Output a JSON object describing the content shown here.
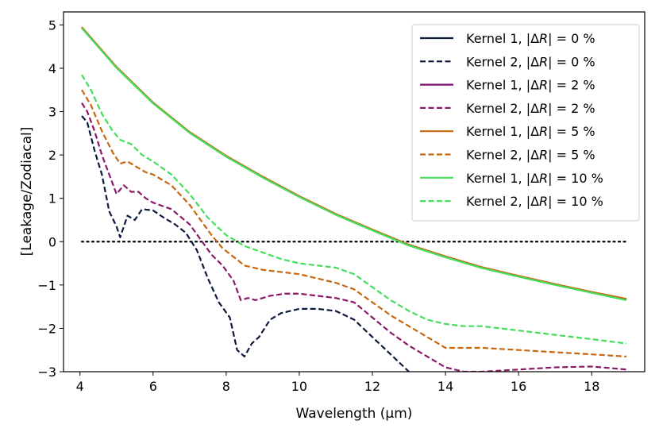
{
  "chart_data": {
    "type": "line",
    "title": "",
    "xlabel": "Wavelength (μm)",
    "ylabel": "[Leakage/Zodiacal]",
    "xlim": [
      3.55,
      19.45
    ],
    "ylim": [
      -3,
      5.3
    ],
    "xticks": [
      4,
      6,
      8,
      10,
      12,
      14,
      16,
      18
    ],
    "yticks": [
      -3,
      -2,
      -1,
      0,
      1,
      2,
      3,
      4,
      5
    ],
    "grid": false,
    "legend_position": "top-right",
    "reference_line": {
      "y": 0,
      "x_range": [
        4.05,
        18.95
      ],
      "style": "dotted",
      "color": "#000000"
    },
    "series": [
      {
        "name": "Kernel 1, |ΔR| = 0 %",
        "label_prefix": "Kernel 1, |Δ",
        "label_var": "R",
        "label_suffix": "| = 0 %",
        "style": "solid",
        "color": "#0b1a3c",
        "x": [
          4.05,
          5,
          6,
          7,
          8,
          9,
          10,
          11,
          12,
          13,
          14,
          15,
          16,
          17,
          18,
          18.95
        ],
        "y": [
          4.93,
          4.02,
          3.2,
          2.52,
          1.97,
          1.49,
          1.04,
          0.63,
          0.27,
          -0.08,
          -0.35,
          -0.6,
          -0.8,
          -0.99,
          -1.17,
          -1.33
        ]
      },
      {
        "name": "Kernel 2, |ΔR| = 0 %",
        "label_prefix": "Kernel 2, |Δ",
        "label_var": "R",
        "label_suffix": "| = 0 %",
        "style": "dashed",
        "color": "#0b1a3c",
        "x": [
          4.05,
          4.2,
          4.4,
          4.6,
          4.8,
          5.0,
          5.1,
          5.3,
          5.5,
          5.7,
          6.0,
          6.3,
          6.6,
          6.9,
          7.2,
          7.5,
          7.8,
          8.1,
          8.3,
          8.5,
          8.7,
          8.9,
          9.2,
          9.5,
          10,
          10.5,
          11,
          11.5,
          12,
          12.5,
          13.0
        ],
        "y": [
          2.9,
          2.75,
          2.1,
          1.55,
          0.7,
          0.35,
          0.1,
          0.6,
          0.5,
          0.75,
          0.72,
          0.55,
          0.4,
          0.2,
          -0.2,
          -0.85,
          -1.4,
          -1.75,
          -2.5,
          -2.65,
          -2.35,
          -2.2,
          -1.8,
          -1.65,
          -1.55,
          -1.55,
          -1.6,
          -1.8,
          -2.2,
          -2.6,
          -3.0
        ]
      },
      {
        "name": "Kernel 1, |ΔR| = 2 %",
        "label_prefix": "Kernel 1, |Δ",
        "label_var": "R",
        "label_suffix": "| = 2 %",
        "style": "solid",
        "color": "#7b0f72",
        "x": [
          4.05,
          5,
          6,
          7,
          8,
          9,
          10,
          11,
          12,
          13,
          14,
          15,
          16,
          17,
          18,
          18.95
        ],
        "y": [
          4.94,
          4.02,
          3.2,
          2.52,
          1.97,
          1.49,
          1.04,
          0.63,
          0.27,
          -0.08,
          -0.35,
          -0.6,
          -0.8,
          -0.99,
          -1.17,
          -1.33
        ]
      },
      {
        "name": "Kernel 2, |ΔR| = 2 %",
        "label_prefix": "Kernel 2, |Δ",
        "label_var": "R",
        "label_suffix": "| = 2 %",
        "style": "dashed",
        "color": "#8b1866",
        "x": [
          4.05,
          4.2,
          4.4,
          4.6,
          4.8,
          5.0,
          5.2,
          5.4,
          5.6,
          5.8,
          6.0,
          6.5,
          7.0,
          7.3,
          7.6,
          7.9,
          8.2,
          8.4,
          8.6,
          8.8,
          9.2,
          9.6,
          10,
          10.5,
          11,
          11.5,
          12,
          12.5,
          13,
          13.5,
          14,
          14.5,
          15,
          16,
          17,
          18,
          18.95
        ],
        "y": [
          3.2,
          3.0,
          2.55,
          2.0,
          1.55,
          1.1,
          1.3,
          1.15,
          1.15,
          1.0,
          0.9,
          0.75,
          0.4,
          0.05,
          -0.3,
          -0.55,
          -0.9,
          -1.35,
          -1.3,
          -1.35,
          -1.25,
          -1.2,
          -1.2,
          -1.25,
          -1.3,
          -1.4,
          -1.75,
          -2.1,
          -2.4,
          -2.65,
          -2.9,
          -3.0,
          -3.0,
          -2.95,
          -2.9,
          -2.88,
          -2.95
        ]
      },
      {
        "name": "Kernel 1, |ΔR| = 5 %",
        "label_prefix": "Kernel 1, |Δ",
        "label_var": "R",
        "label_suffix": "| = 5 %",
        "style": "solid",
        "color": "#c8660e",
        "x": [
          4.05,
          5,
          6,
          7,
          8,
          9,
          10,
          11,
          12,
          13,
          14,
          15,
          16,
          17,
          18,
          18.95
        ],
        "y": [
          4.95,
          4.03,
          3.21,
          2.53,
          1.98,
          1.5,
          1.05,
          0.64,
          0.28,
          -0.07,
          -0.34,
          -0.59,
          -0.79,
          -0.98,
          -1.16,
          -1.32
        ]
      },
      {
        "name": "Kernel 2, |ΔR| = 5 %",
        "label_prefix": "Kernel 2, |Δ",
        "label_var": "R",
        "label_suffix": "| = 5 %",
        "style": "dashed",
        "color": "#c8660e",
        "x": [
          4.05,
          4.3,
          4.6,
          4.9,
          5.1,
          5.3,
          5.5,
          5.8,
          6.0,
          6.5,
          7.0,
          7.3,
          7.6,
          7.9,
          8.2,
          8.5,
          9.0,
          9.5,
          10,
          10.5,
          11,
          11.5,
          12,
          12.5,
          13,
          13.5,
          14,
          14.5,
          15,
          16,
          17,
          18,
          18.95
        ],
        "y": [
          3.5,
          3.15,
          2.55,
          2.05,
          1.8,
          1.85,
          1.75,
          1.6,
          1.55,
          1.3,
          0.85,
          0.5,
          0.15,
          -0.15,
          -0.35,
          -0.55,
          -0.65,
          -0.7,
          -0.75,
          -0.85,
          -0.95,
          -1.1,
          -1.4,
          -1.7,
          -1.95,
          -2.2,
          -2.45,
          -2.45,
          -2.45,
          -2.5,
          -2.55,
          -2.6,
          -2.65
        ]
      },
      {
        "name": "Kernel 1, |ΔR| = 10 %",
        "label_prefix": "Kernel 1, |Δ",
        "label_var": "R",
        "label_suffix": "| = 10 %",
        "style": "solid",
        "color": "#44dd5c",
        "x": [
          4.05,
          5,
          6,
          7,
          8,
          9,
          10,
          11,
          12,
          13,
          14,
          15,
          16,
          17,
          18,
          18.95
        ],
        "y": [
          4.93,
          4.01,
          3.19,
          2.51,
          1.96,
          1.48,
          1.03,
          0.62,
          0.26,
          -0.09,
          -0.36,
          -0.61,
          -0.81,
          -1.0,
          -1.18,
          -1.35
        ]
      },
      {
        "name": "Kernel 2, |ΔR| = 10 %",
        "label_prefix": "Kernel 2, |Δ",
        "label_var": "R",
        "label_suffix": "| = 10 %",
        "style": "dashed",
        "color": "#44dd5c",
        "x": [
          4.05,
          4.3,
          4.6,
          4.9,
          5.1,
          5.4,
          5.7,
          6.0,
          6.5,
          7.0,
          7.5,
          8.0,
          8.5,
          9.0,
          9.5,
          10,
          10.5,
          11,
          11.5,
          12,
          12.5,
          13,
          13.5,
          14,
          14.5,
          15,
          16,
          17,
          18,
          18.95
        ],
        "y": [
          3.85,
          3.5,
          2.95,
          2.55,
          2.35,
          2.25,
          2.0,
          1.85,
          1.55,
          1.1,
          0.55,
          0.15,
          -0.1,
          -0.25,
          -0.4,
          -0.5,
          -0.55,
          -0.6,
          -0.75,
          -1.05,
          -1.35,
          -1.6,
          -1.8,
          -1.9,
          -1.95,
          -1.95,
          -2.05,
          -2.15,
          -2.25,
          -2.35
        ]
      }
    ]
  }
}
